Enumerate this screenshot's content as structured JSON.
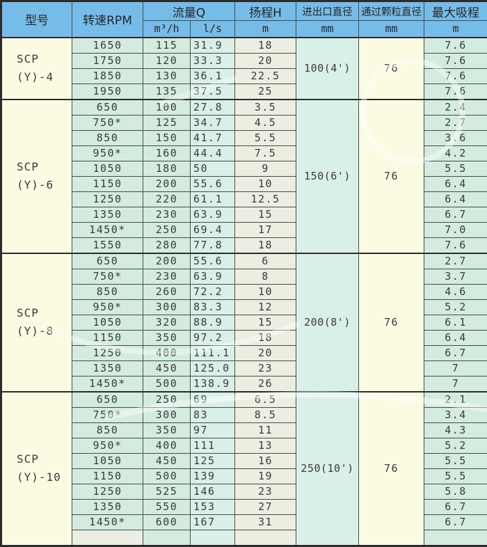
{
  "colors": {
    "header_bg": "#76bce8",
    "cream": "#fbfbe2",
    "mint": "#d3ecdf",
    "mint_blue": "#d9f0e7",
    "sage": "#ebeee0",
    "border": "#4a4a4a"
  },
  "table": {
    "headers": {
      "model": "型号",
      "rpm": "转速RPM",
      "flow": "流量Q",
      "flow_m3h": "m³/h",
      "flow_ls": "l/s",
      "head": "扬程H",
      "head_unit": "m",
      "inlet": "进出口直径",
      "inlet_unit": "mm",
      "particle": "通过颗粒直径",
      "particle_unit": "mm",
      "suction": "最大吸程",
      "suction_unit": "m"
    },
    "sections": [
      {
        "model_line1": "SCP",
        "model_line2": "(Y)-4",
        "inlet": "100(4')",
        "particle": "76",
        "rows": [
          [
            "1650",
            "115",
            "31.9",
            "18",
            "7.6"
          ],
          [
            "1750",
            "120",
            "33.3",
            "20",
            "7.6"
          ],
          [
            "1850",
            "130",
            "36.1",
            "22.5",
            "7.6"
          ],
          [
            "1950",
            "135",
            "37.5",
            "25",
            "7.6"
          ]
        ]
      },
      {
        "model_line1": "SCP",
        "model_line2": "(Y)-6",
        "inlet": "150(6')",
        "particle": "76",
        "rows": [
          [
            "650",
            "100",
            "27.8",
            "3.5",
            "2.4"
          ],
          [
            "750*",
            "125",
            "34.7",
            "4.5",
            "2.7"
          ],
          [
            "850",
            "150",
            "41.7",
            "5.5",
            "3.6"
          ],
          [
            "950*",
            "160",
            "44.4",
            "7.5",
            "4.2"
          ],
          [
            "1050",
            "180",
            "50",
            "9",
            "5.5"
          ],
          [
            "1150",
            "200",
            "55.6",
            "10",
            "6.4"
          ],
          [
            "1250",
            "220",
            "61.1",
            "12.5",
            "6.4"
          ],
          [
            "1350",
            "230",
            "63.9",
            "15",
            "6.7"
          ],
          [
            "1450*",
            "250",
            "69.4",
            "17",
            "7.0"
          ],
          [
            "1550",
            "280",
            "77.8",
            "18",
            "7.6"
          ]
        ]
      },
      {
        "model_line1": "SCP",
        "model_line2": "(Y)-8",
        "inlet": "200(8')",
        "particle": "76",
        "rows": [
          [
            "650",
            "200",
            "55.6",
            "6",
            "2.7"
          ],
          [
            "750*",
            "230",
            "63.9",
            "8",
            "3.7"
          ],
          [
            "850",
            "260",
            "72.2",
            "10",
            "4.6"
          ],
          [
            "950*",
            "300",
            "83.3",
            "12",
            "5.2"
          ],
          [
            "1050",
            "320",
            "88.9",
            "15",
            "6.1"
          ],
          [
            "1150",
            "350",
            "97.2",
            "18",
            "6.4"
          ],
          [
            "1250",
            "400",
            "111.1",
            "20",
            "6.7"
          ],
          [
            "1350",
            "450",
            "125.0",
            "23",
            "7"
          ],
          [
            "1450*",
            "500",
            "138.9",
            "26",
            "7"
          ]
        ]
      },
      {
        "model_line1": "SCP",
        "model_line2": "(Y)-10",
        "inlet": "250(10')",
        "particle": "76",
        "rows": [
          [
            "650",
            "250",
            "69",
            "6.5",
            "2.1"
          ],
          [
            "750*",
            "300",
            "83",
            "8.5",
            "3.4"
          ],
          [
            "850",
            "350",
            "97",
            "11",
            "4.3"
          ],
          [
            "950*",
            "400",
            "111",
            "13",
            "5.2"
          ],
          [
            "1050",
            "450",
            "125",
            "16",
            "5.5"
          ],
          [
            "1150",
            "500",
            "139",
            "19",
            "5.5"
          ],
          [
            "1250",
            "525",
            "146",
            "23",
            "5.8"
          ],
          [
            "1350",
            "550",
            "153",
            "27",
            "6.7"
          ],
          [
            "1450*",
            "600",
            "167",
            "31",
            "6.7"
          ],
          [
            "",
            "",
            "",
            "",
            ""
          ]
        ]
      }
    ]
  }
}
